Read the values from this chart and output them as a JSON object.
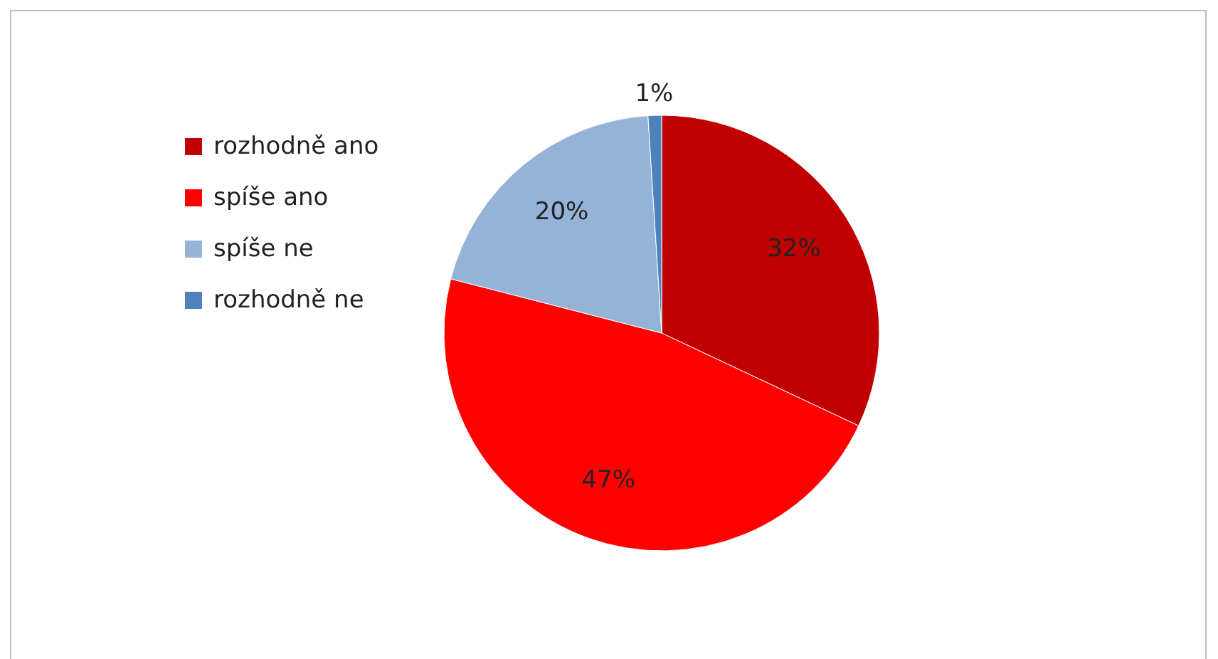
{
  "chart_data": {
    "type": "pie",
    "categories": [
      "rozhodně ano",
      "spíše ano",
      "spíše ne",
      "rozhodně ne"
    ],
    "values": [
      32,
      47,
      20,
      1
    ],
    "colors": [
      "#c00000",
      "#ff0000",
      "#95b3d7",
      "#4f81bd"
    ],
    "value_labels": [
      "32%",
      "47%",
      "20%",
      "1%"
    ],
    "legend": "left"
  }
}
